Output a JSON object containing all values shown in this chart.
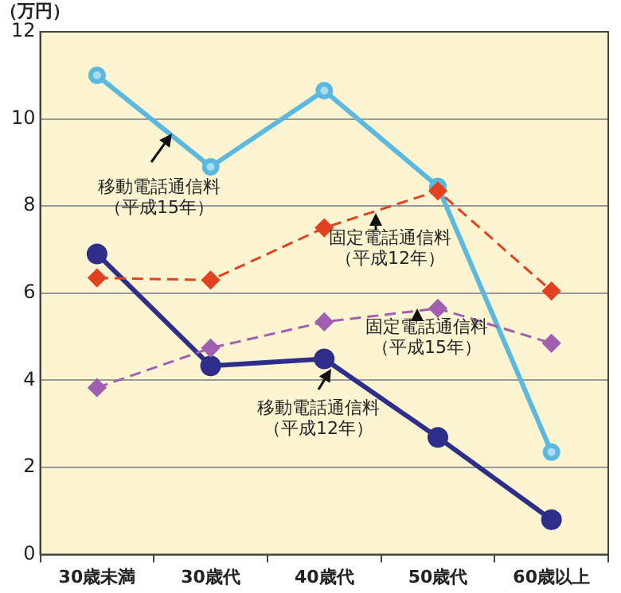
{
  "chart_data": {
    "type": "line",
    "ylabel": "（万円）",
    "categories": [
      "30歳未満",
      "30歳代",
      "40歳代",
      "50歳代",
      "60歳以上"
    ],
    "series": [
      {
        "name": "移動電話通信料（平成15年）",
        "color": "#5bb8de",
        "values": [
          11.0,
          8.9,
          10.65,
          8.45,
          2.35
        ],
        "marker": "circle",
        "line_style": "solid"
      },
      {
        "name": "固定電話通信料（平成12年）",
        "color": "#e2421f",
        "values": [
          6.35,
          6.3,
          7.5,
          8.35,
          6.05
        ],
        "marker": "diamond",
        "line_style": "dashed"
      },
      {
        "name": "固定電話通信料（平成15年）",
        "color": "#a05fb0",
        "values": [
          3.83,
          4.74,
          5.34,
          5.65,
          4.85
        ],
        "marker": "diamond",
        "line_style": "dashed"
      },
      {
        "name": "移動電話通信料（平成12年）",
        "color": "#2e2d8a",
        "values": [
          6.9,
          4.33,
          4.49,
          2.69,
          0.8
        ],
        "marker": "circle",
        "line_style": "solid"
      }
    ],
    "ylim": [
      0,
      12
    ],
    "yticks": [
      0,
      2,
      4,
      6,
      8,
      10,
      12
    ],
    "grid": "y",
    "legend": false
  }
}
